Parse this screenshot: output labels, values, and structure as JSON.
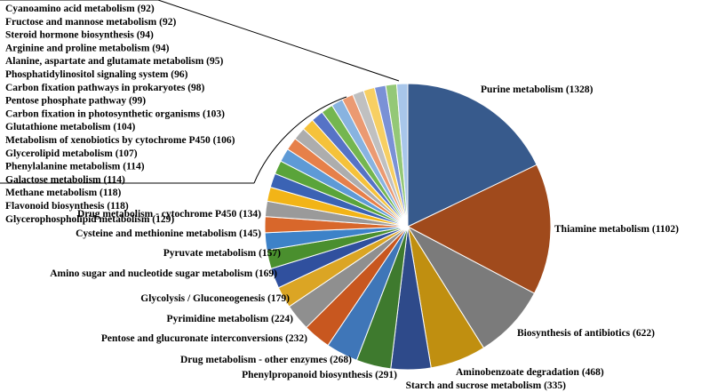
{
  "chart_data": {
    "type": "pie",
    "title": "",
    "slices": [
      {
        "label": "Purine metabolism (1328)",
        "value": 1328,
        "color": "#375a8c"
      },
      {
        "label": "Thiamine metabolism (1102)",
        "value": 1102,
        "color": "#a04a1c"
      },
      {
        "label": "Biosynthesis of antibiotics (622)",
        "value": 622,
        "color": "#7b7b7b"
      },
      {
        "label": "Aminobenzoate degradation (468)",
        "value": 468,
        "color": "#c08f10"
      },
      {
        "label": "Starch and sucrose metabolism (335)",
        "value": 335,
        "color": "#2e4a8a"
      },
      {
        "label": "Phenylpropanoid biosynthesis (291)",
        "value": 291,
        "color": "#3e7a2e"
      },
      {
        "label": "Drug metabolism - other enzymes (268)",
        "value": 268,
        "color": "#3f76b8"
      },
      {
        "label": "Pentose and glucuronate interconversions (232)",
        "value": 232,
        "color": "#c8571f"
      },
      {
        "label": "Pyrimidine metabolism (224)",
        "value": 224,
        "color": "#8f8f8f"
      },
      {
        "label": "Glycolysis / Gluconeogenesis (179)",
        "value": 179,
        "color": "#dba524"
      },
      {
        "label": "Amino sugar and nucleotide sugar metabolism (169)",
        "value": 169,
        "color": "#30509e"
      },
      {
        "label": "Pyruvate metabolism (157)",
        "value": 157,
        "color": "#4a8f2e"
      },
      {
        "label": "Cysteine and methionine metabolism (145)",
        "value": 145,
        "color": "#3d82c8"
      },
      {
        "label": "Drug metabolism - cytochrome P450 (134)",
        "value": 134,
        "color": "#d8672b"
      },
      {
        "label": "Glycerophospholipid metabolism (129)",
        "value": 129,
        "color": "#9a9a9a"
      },
      {
        "label": "Flavonoid biosynthesis (118)",
        "value": 118,
        "color": "#f2b417"
      },
      {
        "label": "Methane metabolism (118)",
        "value": 118,
        "color": "#3b63b4"
      },
      {
        "label": "Galactose metabolism (114)",
        "value": 114,
        "color": "#5aa43a"
      },
      {
        "label": "Phenylalanine metabolism (114)",
        "value": 114,
        "color": "#5e9ad6"
      },
      {
        "label": "Glycerolipid metabolism (107)",
        "value": 107,
        "color": "#e6804a"
      },
      {
        "label": "Metabolism of xenobiotics by cytochrome P450 (106)",
        "value": 106,
        "color": "#adadad"
      },
      {
        "label": "Glutathione metabolism (104)",
        "value": 104,
        "color": "#f5c23b"
      },
      {
        "label": "Carbon fixation in photosynthetic organisms (103)",
        "value": 103,
        "color": "#5673c6"
      },
      {
        "label": "Pentose phosphate pathway (99)",
        "value": 99,
        "color": "#74b650"
      },
      {
        "label": "Carbon fixation pathways in prokaryotes (98)",
        "value": 98,
        "color": "#88b3e0"
      },
      {
        "label": "Phosphatidylinositol signaling system (96)",
        "value": 96,
        "color": "#eb9a72"
      },
      {
        "label": "Alanine, aspartate and glutamate metabolism (95)",
        "value": 95,
        "color": "#c0c0c0"
      },
      {
        "label": "Arginine and proline metabolism (94)",
        "value": 94,
        "color": "#f7cf63"
      },
      {
        "label": "Steroid hormone biosynthesis (94)",
        "value": 94,
        "color": "#7a91d6"
      },
      {
        "label": "Fructose and mannose metabolism (92)",
        "value": 92,
        "color": "#94c877"
      },
      {
        "label": "Cyanoamino acid metabolism (92)",
        "value": 92,
        "color": "#a8c6ea"
      }
    ],
    "legend": "none"
  }
}
